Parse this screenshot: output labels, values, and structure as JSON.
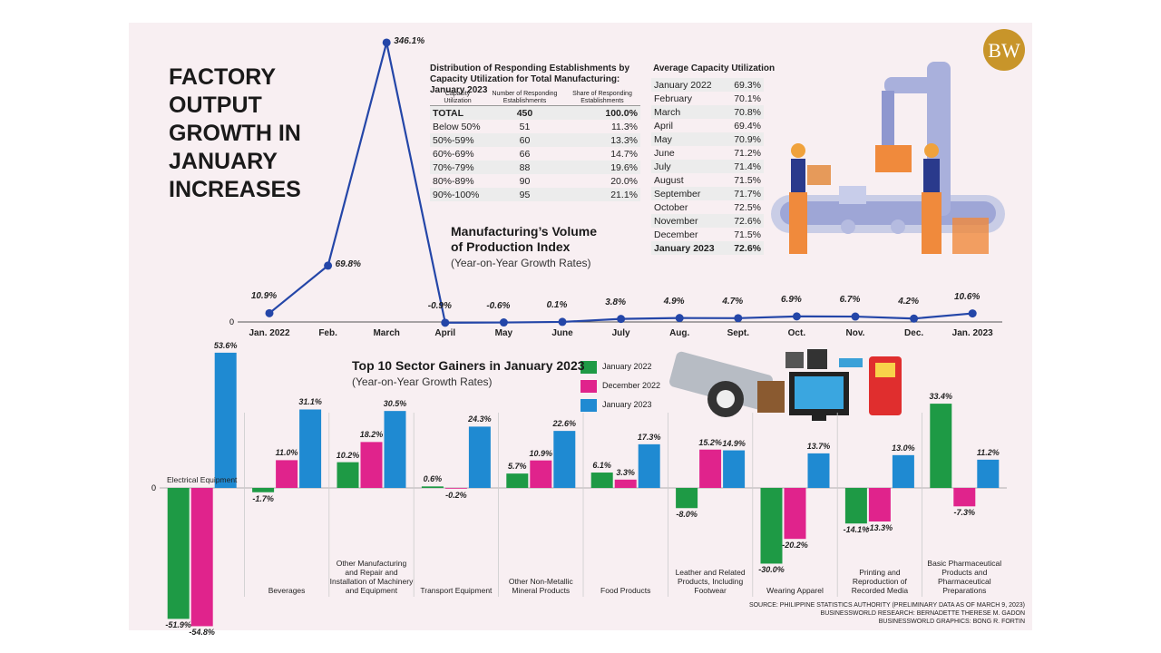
{
  "title": "FACTORY OUTPUT GROWTH IN JANUARY INCREASES",
  "logo": "BW",
  "chart_data": [
    {
      "type": "line",
      "title": "Manufacturing’s Volume of Production Index",
      "subtitle": "(Year-on-Year Growth Rates)",
      "categories": [
        "Jan. 2022",
        "Feb.",
        "March",
        "April",
        "May",
        "June",
        "July",
        "Aug.",
        "Sept.",
        "Oct.",
        "Nov.",
        "Dec.",
        "Jan. 2023"
      ],
      "values": [
        10.9,
        69.8,
        346.1,
        -0.9,
        -0.6,
        0.1,
        3.8,
        4.9,
        4.7,
        6.9,
        6.7,
        4.2,
        10.6
      ],
      "value_labels": [
        "10.9%",
        "69.8%",
        "346.1%",
        "-0.9%",
        "-0.6%",
        "0.1%",
        "3.8%",
        "4.9%",
        "4.7%",
        "6.9%",
        "6.7%",
        "4.2%",
        "10.6%"
      ],
      "color": "#2446a8",
      "ylim": [
        -2,
        348
      ],
      "yticks": [
        0
      ]
    },
    {
      "type": "bar",
      "title": "Top 10 Sector Gainers in January 2023",
      "subtitle": "(Year-on-Year Growth Rates)",
      "categories": [
        "Electrical Equipment",
        "Beverages",
        "Other Manufacturing and Repair and Installation of Machinery and Equipment",
        "Transport Equipment",
        "Other Non-Metallic Mineral Products",
        "Food Products",
        "Leather and Related Products, Including Footwear",
        "Wearing Apparel",
        "Printing and Reproduction of Recorded Media",
        "Basic Pharmaceutical Products and Pharmaceutical Preparations"
      ],
      "series": [
        {
          "name": "January 2022",
          "color": "#1e9a45",
          "values": [
            -51.9,
            -1.7,
            10.2,
            0.6,
            5.7,
            6.1,
            -8.0,
            -30.0,
            -14.1,
            33.4
          ],
          "value_labels": [
            "-51.9%",
            "-1.7%",
            "10.2%",
            "0.6%",
            "5.7%",
            "6.1%",
            "-8.0%",
            "-30.0%",
            "-14.1%",
            "33.4%"
          ]
        },
        {
          "name": "December 2022",
          "color": "#e0238c",
          "values": [
            -54.8,
            11.0,
            18.2,
            -0.2,
            10.9,
            3.3,
            15.2,
            -20.2,
            -13.3,
            -7.3
          ],
          "value_labels": [
            "-54.8%",
            "11.0%",
            "18.2%",
            "-0.2%",
            "10.9%",
            "3.3%",
            "15.2%",
            "-20.2%",
            "-13.3%",
            "-7.3%"
          ]
        },
        {
          "name": "January 2023",
          "color": "#1f8ad2",
          "values": [
            53.6,
            31.1,
            30.5,
            24.3,
            22.6,
            17.3,
            14.9,
            13.7,
            13.0,
            11.2
          ],
          "value_labels": [
            "53.6%",
            "31.1%",
            "30.5%",
            "24.3%",
            "22.6%",
            "17.3%",
            "14.9%",
            "13.7%",
            "13.0%",
            "11.2%"
          ]
        }
      ],
      "ylim": [
        -55,
        55
      ],
      "yticks": [
        0
      ],
      "legend": "top-right"
    }
  ],
  "distribution_table": {
    "title": "Distribution of Responding Establishments by Capacity Utilization for Total Manufacturing: January 2023",
    "headers": [
      "Capacity Utilization",
      "Number of Responding Establishments",
      "Share of Responding Establishments"
    ],
    "rows": [
      [
        "TOTAL",
        "450",
        "100.0%"
      ],
      [
        "Below 50%",
        "51",
        "11.3%"
      ],
      [
        "50%-59%",
        "60",
        "13.3%"
      ],
      [
        "60%-69%",
        "66",
        "14.7%"
      ],
      [
        "70%-79%",
        "88",
        "19.6%"
      ],
      [
        "80%-89%",
        "90",
        "20.0%"
      ],
      [
        "90%-100%",
        "95",
        "21.1%"
      ]
    ]
  },
  "capacity_table": {
    "title": "Average Capacity Utilization",
    "rows": [
      [
        "January 2022",
        "69.3%"
      ],
      [
        "February",
        "70.1%"
      ],
      [
        "March",
        "70.8%"
      ],
      [
        "April",
        "69.4%"
      ],
      [
        "May",
        "70.9%"
      ],
      [
        "June",
        "71.2%"
      ],
      [
        "July",
        "71.4%"
      ],
      [
        "August",
        "71.5%"
      ],
      [
        "September",
        "71.7%"
      ],
      [
        "October",
        "72.5%"
      ],
      [
        "November",
        "72.6%"
      ],
      [
        "December",
        "71.5%"
      ],
      [
        "January 2023",
        "72.6%"
      ]
    ]
  },
  "credits": [
    "SOURCE: PHILIPPINE STATISTICS AUTHORITY (PRELIMINARY DATA AS OF MARCH 9, 2023)",
    "BUSINESSWORLD RESEARCH: BERNADETTE THERESE M. GADON",
    "BUSINESSWORLD GRAPHICS: BONG R. FORTIN"
  ]
}
